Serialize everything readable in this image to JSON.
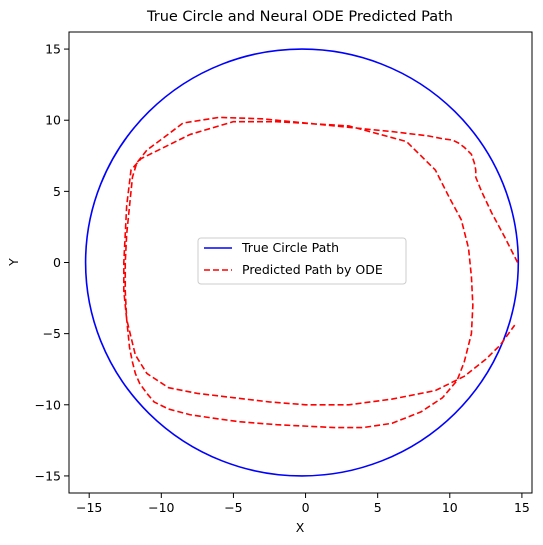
{
  "chart_data": {
    "type": "line",
    "title": "True Circle and Neural ODE Predicted Path",
    "xlabel": "X",
    "ylabel": "Y",
    "xlim": [
      -16.4,
      15.7
    ],
    "ylim": [
      -16.2,
      16.2
    ],
    "xticks": [
      -15,
      -10,
      -5,
      0,
      5,
      10,
      15
    ],
    "yticks": [
      -15,
      -10,
      -5,
      0,
      5,
      10,
      15
    ],
    "grid": false,
    "legend_position": "center",
    "colors": {
      "true": "#0000ff",
      "predicted": "#ff0000"
    },
    "series": [
      {
        "name": "True Circle Path",
        "style": "solid",
        "shape": "circle",
        "center": [
          -0.25,
          0
        ],
        "radius": 15
      },
      {
        "name": "Predicted Path by ODE",
        "style": "dashed",
        "x": [
          14.7,
          13.8,
          12.9,
          12.2,
          11.8,
          11.8,
          11.7,
          11.5,
          11.0,
          10.6,
          10.2,
          9.5,
          8.5,
          6.0,
          3.0,
          0.0,
          -3.0,
          -6.0,
          -8.5,
          -9.8,
          -11.0,
          -11.7,
          -12.0,
          -12.2,
          -12.4,
          -12.5,
          -12.5,
          -12.4,
          -12.2,
          -12.0,
          -11.8,
          -11.5,
          -11.0,
          -10.5,
          -9.5,
          -8.0,
          -6.0,
          -4.5,
          -2.0,
          0.0,
          2.0,
          4.0,
          6.0,
          8.0,
          9.5,
          10.5,
          11.0,
          11.5,
          11.6,
          11.5,
          11.3,
          10.8,
          10.0,
          9.5,
          9.0,
          7.0,
          3.0,
          -2.0,
          -5.0,
          -8.0,
          -10.0,
          -11.4,
          -12.1,
          -12.4,
          -12.5,
          -12.6,
          -12.6,
          -12.4,
          -11.8,
          -11.0,
          -9.5,
          -7.5,
          -5.0,
          -2.5,
          0.0,
          3.0,
          6.0,
          9.0,
          11.0,
          12.5,
          13.5,
          14.5
        ],
        "y": [
          0.0,
          1.8,
          3.5,
          5.0,
          6.0,
          6.5,
          7.0,
          7.6,
          8.1,
          8.4,
          8.6,
          8.7,
          8.9,
          9.2,
          9.5,
          9.8,
          10.1,
          10.2,
          9.8,
          8.8,
          7.9,
          7.0,
          6.0,
          4.0,
          2.0,
          0.0,
          -2.0,
          -4.0,
          -6.0,
          -7.0,
          -7.8,
          -8.5,
          -9.2,
          -9.8,
          -10.3,
          -10.7,
          -11.0,
          -11.2,
          -11.4,
          -11.5,
          -11.6,
          -11.6,
          -11.3,
          -10.5,
          -9.5,
          -8.3,
          -7.0,
          -5.0,
          -3.0,
          -1.0,
          1.0,
          3.0,
          4.5,
          5.5,
          6.5,
          8.5,
          9.6,
          9.9,
          9.9,
          9.0,
          8.0,
          7.3,
          6.5,
          4.0,
          2.0,
          0.0,
          -2.0,
          -4.0,
          -6.5,
          -7.8,
          -8.8,
          -9.2,
          -9.5,
          -9.8,
          -10.0,
          -10.0,
          -9.6,
          -9.0,
          -8.0,
          -6.8,
          -5.8,
          -4.4
        ]
      }
    ]
  }
}
